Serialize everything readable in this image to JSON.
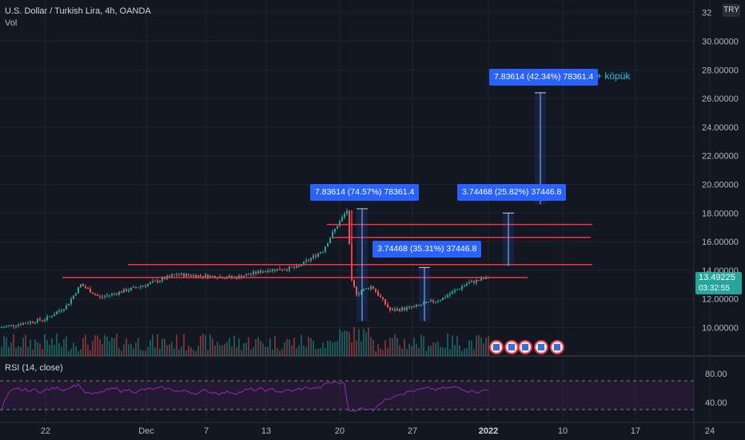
{
  "header": {
    "title": "U.S. Dollar / Turkish Lira, 4h, OANDA",
    "sub": "Vol"
  },
  "currency_tag": "TRY",
  "last_price": {
    "value": "13.49225",
    "countdown": "03:32:55"
  },
  "rsi_label": "RSI (14, close)",
  "measurements": [
    {
      "text": "7.83614 (74.57%) 78361.4"
    },
    {
      "text": "3.74468 (35.31%) 37446.8"
    },
    {
      "text": "3.74468 (25.82%) 37446.8"
    },
    {
      "text": "7.83614 (42.34%) 78361.4"
    }
  ],
  "note": "+ köpük",
  "colors": {
    "background": "#131722",
    "up": "#26a69a",
    "down": "#ef5350",
    "rsi": "#9c27b0",
    "level_line": "#f23645",
    "box": "#2962ff",
    "note": "#26c6da"
  },
  "chart_data": {
    "type": "candlestick",
    "title": "U.S. Dollar / Turkish Lira, 4h, OANDA",
    "price_axis": {
      "ticks": [
        10,
        12,
        14,
        16,
        18,
        20,
        22,
        24,
        26,
        28,
        30,
        32
      ],
      "tick_labels": [
        "10.00000",
        "12.00000",
        "14.00000",
        "16.00000",
        "18.00000",
        "20.00000",
        "22.00000",
        "24.00000",
        "26.00000",
        "28.00000",
        "30.00000",
        "32"
      ]
    },
    "time_axis": {
      "labels": [
        "22",
        "Dec",
        "7",
        "13",
        "20",
        "27",
        "2022",
        "10",
        "17",
        "24"
      ]
    },
    "price_path": [
      [
        "22",
        10.6
      ],
      [
        "Nov 25",
        11.5
      ],
      [
        "Nov 27",
        13.0
      ],
      [
        "Nov 29",
        12.1
      ],
      [
        "Dec",
        13.0
      ],
      [
        "Dec 3",
        13.7
      ],
      [
        "7",
        13.6
      ],
      [
        "Dec 9",
        13.5
      ],
      [
        "13",
        14.0
      ],
      [
        "Dec 15",
        14.2
      ],
      [
        "Dec 17",
        15.4
      ],
      [
        "Dec 18",
        16.6
      ],
      [
        "Dec 20",
        18.2
      ],
      [
        "Dec 21",
        13.2
      ],
      [
        "Dec 22",
        12.4
      ],
      [
        "Dec 23",
        12.9
      ],
      [
        "Dec 25",
        11.2
      ],
      [
        "27",
        11.4
      ],
      [
        "Dec 29",
        12.0
      ],
      [
        "Dec 31",
        13.1
      ],
      [
        "2022",
        13.49
      ]
    ],
    "horizontal_levels": [
      13.5,
      14.4,
      16.3,
      17.2
    ],
    "rsi": {
      "ticks": [
        40,
        80
      ],
      "tick_labels": [
        "40.00",
        "80.00"
      ],
      "bands": [
        30,
        70
      ]
    }
  }
}
